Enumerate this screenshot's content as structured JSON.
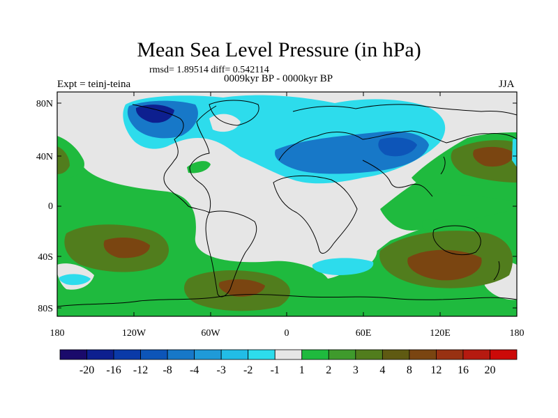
{
  "title": "Mean Sea Level Pressure (in hPa)",
  "stats": "rmsd= 1.89514  diff= 0.542114",
  "period": "0009kyr BP - 0000kyr BP",
  "experiment": "Expt = teinj-teina",
  "season": "JJA",
  "axes": {
    "lat_ticks": [
      "80N",
      "40N",
      "0",
      "40S",
      "80S"
    ],
    "lon_ticks": [
      "180",
      "120W",
      "60W",
      "0",
      "60E",
      "120E",
      "180"
    ]
  },
  "colorbar": {
    "labels": [
      "-20",
      "-16",
      "-12",
      "-8",
      "-4",
      "-3",
      "-2",
      "-1",
      "1",
      "2",
      "3",
      "4",
      "8",
      "12",
      "16",
      "20"
    ],
    "colors": [
      "#1a0a6b",
      "#0d1f8f",
      "#0a3aa8",
      "#0d55b8",
      "#1778c8",
      "#1f9ad8",
      "#22bde6",
      "#2ddcec",
      "#e6e6e6",
      "#1fba3e",
      "#3f9a2c",
      "#517d1d",
      "#5f5a12",
      "#7a4511",
      "#983112",
      "#b51a10",
      "#cc0a08"
    ]
  },
  "colors": {
    "neutral": "#e6e6e6",
    "pos_weak": "#1fba3e",
    "pos_med": "#517d1d",
    "pos_strong": "#7a4511",
    "neg_weak": "#2ddcec",
    "neg_med": "#1778c8",
    "neg_strong": "#0d1f8f",
    "coast": "#000000"
  }
}
